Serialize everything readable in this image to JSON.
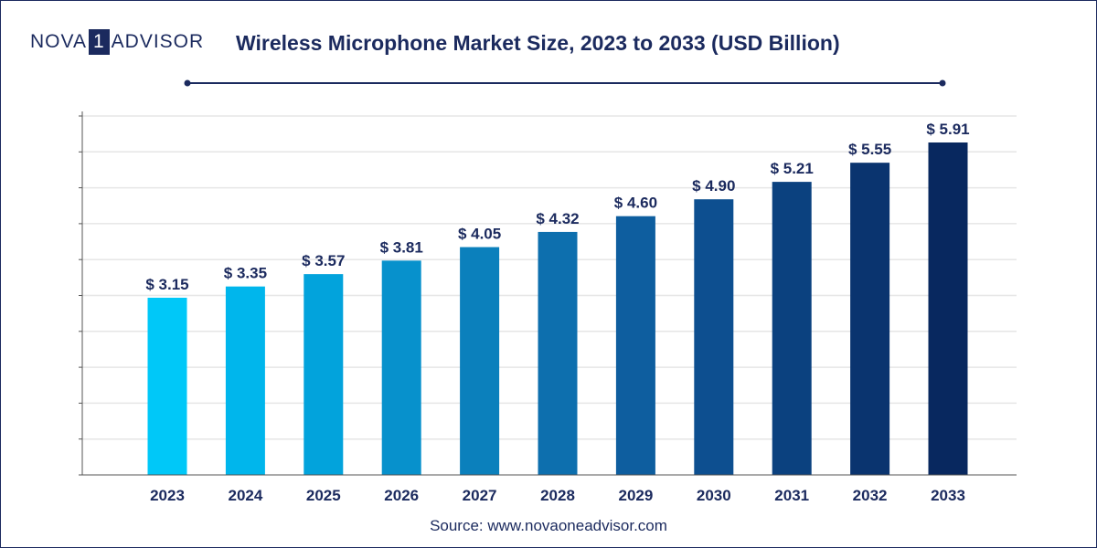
{
  "logo": {
    "left": "NOVA",
    "digit": "1",
    "right": "ADVISOR"
  },
  "title": "Wireless Microphone Market Size, 2023 to 2033 (USD Billion)",
  "source": "Source: www.novaoneadvisor.com",
  "colors": {
    "text": "#1b2a5e",
    "grid": "#e6e6e6",
    "bars": [
      "#00c8f8",
      "#00b6ec",
      "#02a3dc",
      "#0791cc",
      "#0b80bc",
      "#0d6fae",
      "#0e5e9f",
      "#0d4f90",
      "#0b417f",
      "#0a346f",
      "#08285f"
    ]
  },
  "chart_data": {
    "type": "bar",
    "title": "Wireless Microphone Market Size, 2023 to 2033 (USD Billion)",
    "categories": [
      "2023",
      "2024",
      "2025",
      "2026",
      "2027",
      "2028",
      "2029",
      "2030",
      "2031",
      "2032",
      "2033"
    ],
    "values": [
      3.15,
      3.35,
      3.57,
      3.81,
      4.05,
      4.32,
      4.6,
      4.9,
      5.21,
      5.55,
      5.91
    ],
    "data_labels": [
      "$ 3.15",
      "$ 3.35",
      "$ 3.57",
      "$ 3.81",
      "$ 4.05",
      "$ 4.32",
      "$ 4.60",
      "$ 4.90",
      "$ 5.21",
      "$ 5.55",
      "$ 5.91"
    ],
    "xlabel": "",
    "ylabel": "",
    "y_tick_labels_shown": false,
    "grid": true,
    "legend": "none"
  }
}
